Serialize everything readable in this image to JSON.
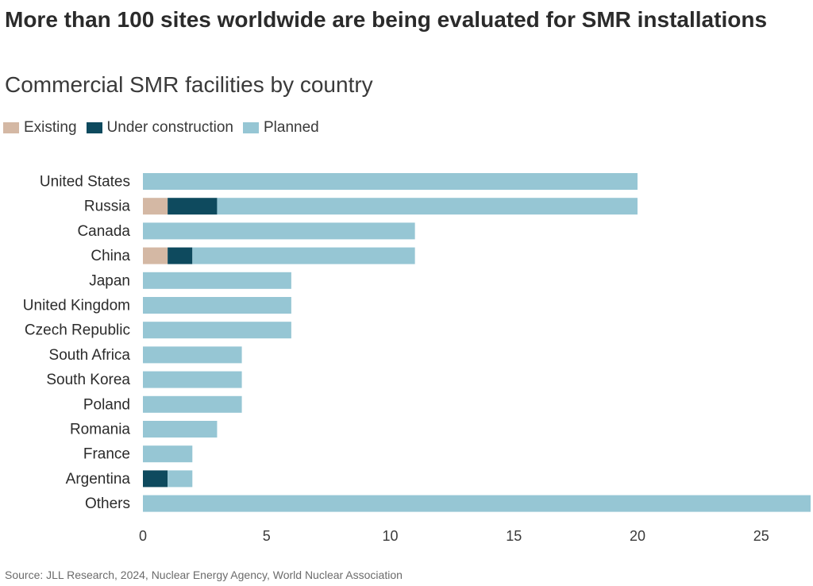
{
  "title": "More than 100 sites worldwide are being evaluated for SMR installations",
  "subtitle": "Commercial SMR facilities by country",
  "source": "Source: JLL Research, 2024, Nuclear Energy Agency, World Nuclear Association",
  "chart_data": {
    "type": "bar",
    "orientation": "horizontal",
    "stacked": true,
    "title": "More than 100 sites worldwide are being evaluated for SMR installations",
    "subtitle": "Commercial SMR facilities by country",
    "xlabel": "",
    "ylabel": "",
    "xlim": [
      0,
      27
    ],
    "x_ticks": [
      0,
      5,
      10,
      15,
      20,
      25
    ],
    "grid": false,
    "legend_position": "top-left",
    "categories": [
      "United States",
      "Russia",
      "Canada",
      "China",
      "Japan",
      "United Kingdom",
      "Czech Republic",
      "South Africa",
      "South Korea",
      "Poland",
      "Romania",
      "France",
      "Argentina",
      "Others"
    ],
    "series": [
      {
        "name": "Existing",
        "color": "#d4b8a4",
        "values": [
          0,
          1,
          0,
          1,
          0,
          0,
          0,
          0,
          0,
          0,
          0,
          0,
          0,
          0
        ]
      },
      {
        "name": "Under construction",
        "color": "#0e4a5e",
        "values": [
          0,
          2,
          0,
          1,
          0,
          0,
          0,
          0,
          0,
          0,
          0,
          0,
          1,
          0
        ]
      },
      {
        "name": "Planned",
        "color": "#96c6d4",
        "values": [
          20,
          17,
          11,
          9,
          6,
          6,
          6,
          4,
          4,
          4,
          3,
          2,
          1,
          27
        ]
      }
    ]
  }
}
